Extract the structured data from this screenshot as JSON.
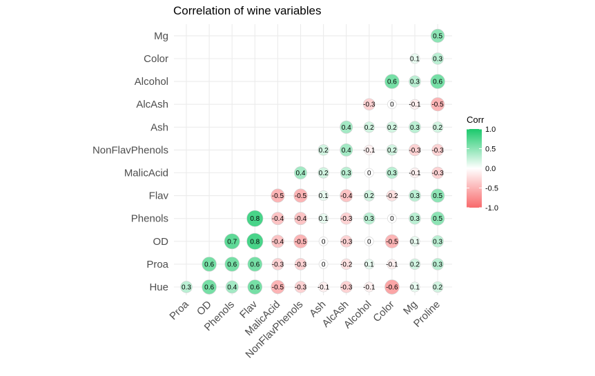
{
  "chart_data": {
    "type": "heatmap",
    "title": "Correlation of wine variables",
    "x_categories": [
      "Proa",
      "OD",
      "Phenols",
      "Flav",
      "MalicAcid",
      "NonFlavPhenols",
      "Ash",
      "AlcAsh",
      "Alcohol",
      "Color",
      "Mg",
      "Proline"
    ],
    "y_categories": [
      "Hue",
      "Proa",
      "OD",
      "Phenols",
      "Flav",
      "MalicAcid",
      "NonFlavPhenols",
      "Ash",
      "AlcAsh",
      "Alcohol",
      "Color",
      "Mg"
    ],
    "cells": [
      {
        "x": "Proline",
        "y": "Mg",
        "label": "0.5",
        "value": 0.5
      },
      {
        "x": "Mg",
        "y": "Color",
        "label": "0.1",
        "value": 0.1
      },
      {
        "x": "Proline",
        "y": "Color",
        "label": "0.3",
        "value": 0.3
      },
      {
        "x": "Color",
        "y": "Alcohol",
        "label": "0.6",
        "value": 0.6
      },
      {
        "x": "Mg",
        "y": "Alcohol",
        "label": "0.3",
        "value": 0.3
      },
      {
        "x": "Proline",
        "y": "Alcohol",
        "label": "0.6",
        "value": 0.6
      },
      {
        "x": "Alcohol",
        "y": "AlcAsh",
        "label": "-0.3",
        "value": -0.3
      },
      {
        "x": "Color",
        "y": "AlcAsh",
        "label": "0",
        "value": 0
      },
      {
        "x": "Mg",
        "y": "AlcAsh",
        "label": "-0.1",
        "value": -0.1
      },
      {
        "x": "Proline",
        "y": "AlcAsh",
        "label": "-0.5",
        "value": -0.5
      },
      {
        "x": "AlcAsh",
        "y": "Ash",
        "label": "0.4",
        "value": 0.4
      },
      {
        "x": "Alcohol",
        "y": "Ash",
        "label": "0.2",
        "value": 0.2
      },
      {
        "x": "Color",
        "y": "Ash",
        "label": "0.2",
        "value": 0.2
      },
      {
        "x": "Mg",
        "y": "Ash",
        "label": "0.3",
        "value": 0.3
      },
      {
        "x": "Proline",
        "y": "Ash",
        "label": "0.2",
        "value": 0.2
      },
      {
        "x": "Ash",
        "y": "NonFlavPhenols",
        "label": "0.2",
        "value": 0.2
      },
      {
        "x": "AlcAsh",
        "y": "NonFlavPhenols",
        "label": "0.4",
        "value": 0.4
      },
      {
        "x": "Alcohol",
        "y": "NonFlavPhenols",
        "label": "-0.1",
        "value": -0.1
      },
      {
        "x": "Color",
        "y": "NonFlavPhenols",
        "label": "0.2",
        "value": 0.2
      },
      {
        "x": "Mg",
        "y": "NonFlavPhenols",
        "label": "-0.3",
        "value": -0.3
      },
      {
        "x": "Proline",
        "y": "NonFlavPhenols",
        "label": "-0.3",
        "value": -0.3
      },
      {
        "x": "NonFlavPhenols",
        "y": "MalicAcid",
        "label": "0.4",
        "value": 0.4
      },
      {
        "x": "Ash",
        "y": "MalicAcid",
        "label": "0.2",
        "value": 0.2
      },
      {
        "x": "AlcAsh",
        "y": "MalicAcid",
        "label": "0.3",
        "value": 0.3
      },
      {
        "x": "Alcohol",
        "y": "MalicAcid",
        "label": "0",
        "value": 0
      },
      {
        "x": "Color",
        "y": "MalicAcid",
        "label": "0.3",
        "value": 0.3
      },
      {
        "x": "Mg",
        "y": "MalicAcid",
        "label": "-0.1",
        "value": -0.1
      },
      {
        "x": "Proline",
        "y": "MalicAcid",
        "label": "-0.3",
        "value": -0.3
      },
      {
        "x": "MalicAcid",
        "y": "Flav",
        "label": "-0.5",
        "value": -0.5
      },
      {
        "x": "NonFlavPhenols",
        "y": "Flav",
        "label": "-0.5",
        "value": -0.5
      },
      {
        "x": "Ash",
        "y": "Flav",
        "label": "0.1",
        "value": 0.1
      },
      {
        "x": "AlcAsh",
        "y": "Flav",
        "label": "-0.4",
        "value": -0.4
      },
      {
        "x": "Alcohol",
        "y": "Flav",
        "label": "0.2",
        "value": 0.2
      },
      {
        "x": "Color",
        "y": "Flav",
        "label": "-0.2",
        "value": -0.2
      },
      {
        "x": "Mg",
        "y": "Flav",
        "label": "0.3",
        "value": 0.3
      },
      {
        "x": "Proline",
        "y": "Flav",
        "label": "0.5",
        "value": 0.5
      },
      {
        "x": "Flav",
        "y": "Phenols",
        "label": "0.8",
        "value": 0.8
      },
      {
        "x": "MalicAcid",
        "y": "Phenols",
        "label": "-0.4",
        "value": -0.4
      },
      {
        "x": "NonFlavPhenols",
        "y": "Phenols",
        "label": "-0.4",
        "value": -0.4
      },
      {
        "x": "Ash",
        "y": "Phenols",
        "label": "0.1",
        "value": 0.1
      },
      {
        "x": "AlcAsh",
        "y": "Phenols",
        "label": "-0.3",
        "value": -0.3
      },
      {
        "x": "Alcohol",
        "y": "Phenols",
        "label": "0.3",
        "value": 0.3
      },
      {
        "x": "Color",
        "y": "Phenols",
        "label": "0",
        "value": 0
      },
      {
        "x": "Mg",
        "y": "Phenols",
        "label": "0.3",
        "value": 0.3
      },
      {
        "x": "Proline",
        "y": "Phenols",
        "label": "0.5",
        "value": 0.5
      },
      {
        "x": "Phenols",
        "y": "OD",
        "label": "0.7",
        "value": 0.7
      },
      {
        "x": "Flav",
        "y": "OD",
        "label": "0.8",
        "value": 0.8
      },
      {
        "x": "MalicAcid",
        "y": "OD",
        "label": "-0.4",
        "value": -0.4
      },
      {
        "x": "NonFlavPhenols",
        "y": "OD",
        "label": "-0.5",
        "value": -0.5
      },
      {
        "x": "Ash",
        "y": "OD",
        "label": "0",
        "value": 0
      },
      {
        "x": "AlcAsh",
        "y": "OD",
        "label": "-0.3",
        "value": -0.3
      },
      {
        "x": "Alcohol",
        "y": "OD",
        "label": "0",
        "value": 0
      },
      {
        "x": "Color",
        "y": "OD",
        "label": "-0.5",
        "value": -0.5
      },
      {
        "x": "Mg",
        "y": "OD",
        "label": "0.1",
        "value": 0.1
      },
      {
        "x": "Proline",
        "y": "OD",
        "label": "0.3",
        "value": 0.3
      },
      {
        "x": "OD",
        "y": "Proa",
        "label": "0.6",
        "value": 0.6
      },
      {
        "x": "Phenols",
        "y": "Proa",
        "label": "0.6",
        "value": 0.6
      },
      {
        "x": "Flav",
        "y": "Proa",
        "label": "0.6",
        "value": 0.6
      },
      {
        "x": "MalicAcid",
        "y": "Proa",
        "label": "-0.3",
        "value": -0.3
      },
      {
        "x": "NonFlavPhenols",
        "y": "Proa",
        "label": "-0.3",
        "value": -0.3
      },
      {
        "x": "Ash",
        "y": "Proa",
        "label": "0",
        "value": 0
      },
      {
        "x": "AlcAsh",
        "y": "Proa",
        "label": "-0.2",
        "value": -0.2
      },
      {
        "x": "Alcohol",
        "y": "Proa",
        "label": "0.1",
        "value": 0.1
      },
      {
        "x": "Color",
        "y": "Proa",
        "label": "-0.1",
        "value": -0.1
      },
      {
        "x": "Mg",
        "y": "Proa",
        "label": "0.2",
        "value": 0.2
      },
      {
        "x": "Proline",
        "y": "Proa",
        "label": "0.3",
        "value": 0.3
      },
      {
        "x": "Proa",
        "y": "Hue",
        "label": "0.3",
        "value": 0.3
      },
      {
        "x": "OD",
        "y": "Hue",
        "label": "0.6",
        "value": 0.6
      },
      {
        "x": "Phenols",
        "y": "Hue",
        "label": "0.4",
        "value": 0.4
      },
      {
        "x": "Flav",
        "y": "Hue",
        "label": "0.6",
        "value": 0.6
      },
      {
        "x": "MalicAcid",
        "y": "Hue",
        "label": "-0.5",
        "value": -0.5
      },
      {
        "x": "NonFlavPhenols",
        "y": "Hue",
        "label": "-0.3",
        "value": -0.3
      },
      {
        "x": "Ash",
        "y": "Hue",
        "label": "-0.1",
        "value": -0.1
      },
      {
        "x": "AlcAsh",
        "y": "Hue",
        "label": "-0.3",
        "value": -0.3
      },
      {
        "x": "Alcohol",
        "y": "Hue",
        "label": "-0.1",
        "value": -0.1
      },
      {
        "x": "Color",
        "y": "Hue",
        "label": "-0.6",
        "value": -0.6
      },
      {
        "x": "Mg",
        "y": "Hue",
        "label": "0.1",
        "value": 0.1
      },
      {
        "x": "Proline",
        "y": "Hue",
        "label": "0.2",
        "value": 0.2
      }
    ],
    "legend": {
      "title": "Corr",
      "position": "right",
      "ticks": [
        {
          "value": 1.0,
          "label": "1.0"
        },
        {
          "value": 0.5,
          "label": "0.5"
        },
        {
          "value": 0.0,
          "label": "0.0"
        },
        {
          "value": -0.5,
          "label": "-0.5"
        },
        {
          "value": -1.0,
          "label": "-1.0"
        }
      ],
      "range": [
        -1,
        1
      ]
    },
    "colors": {
      "low": "#F8696B",
      "mid": "#FFFFFF",
      "high": "#1AC96B"
    },
    "grid": true,
    "size_encodes_abs_value": true
  }
}
